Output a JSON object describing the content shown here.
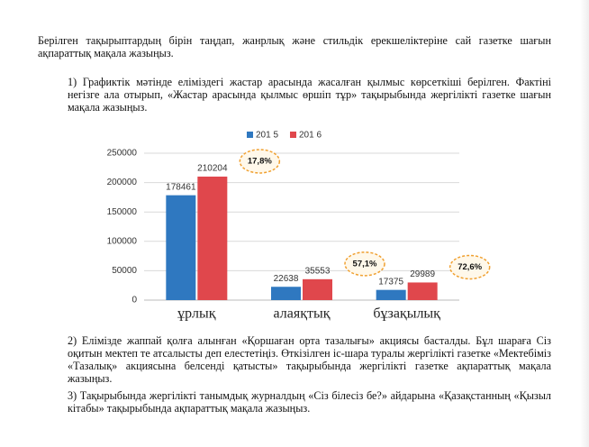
{
  "document": {
    "intro": "Берілген тақырыптардың бірін таңдап, жанрлық және стильдік ерекшеліктеріне сай газетке шағын ақпараттық мақала жазыңыз.",
    "tasks": [
      "1) Графиктік мәтінде еліміздегі жастар арасында жасалған қылмыс көрсеткіші берілген. Фактіні негізге ала отырып, «Жастар арасында қылмыс өршіп тұр» тақырыбында жергілікті газетке шағын мақала жазыңыз.",
      "2) Елімізде жаппай қолға алынған «Қоршаған орта тазалығы» акциясы басталды. Бұл шараға Сіз оқитын мектеп те атсалысты деп елестетіңіз. Өткізілген іс-шара туралы жергілікті газетке «Мектебіміз «Тазалық» акциясына белсенді қатысты» тақырыбында жергілікті газетке ақпараттық мақала жазыңыз.",
      "3) Тақырыбында жергілікті танымдық журналдың «Сіз білесіз бе?» айдарына «Қазақстанның «Қызыл кітабы» тақырыбында ақпараттық мақала жазыңыз."
    ]
  },
  "chart_data": {
    "type": "bar",
    "categories": [
      "ұрлық",
      "алаяқтық",
      "бұзақылық"
    ],
    "series": [
      {
        "name": "201 5",
        "color": "#2f78c0",
        "values": [
          178461,
          22638,
          17375
        ]
      },
      {
        "name": "201 6",
        "color": "#e0474c",
        "values": [
          210204,
          35553,
          29989
        ]
      }
    ],
    "annotations": [
      "17,8%",
      "57,1%",
      "72,6%"
    ],
    "ylim": [
      0,
      250000
    ],
    "yticks": [
      0,
      50000,
      100000,
      150000,
      200000,
      250000
    ],
    "grid": true,
    "legend": "top"
  }
}
